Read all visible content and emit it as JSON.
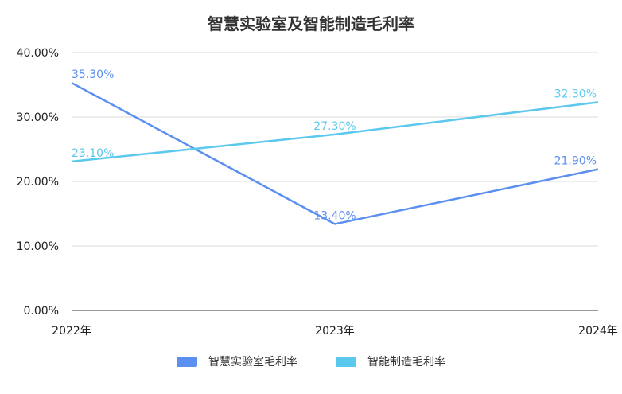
{
  "chart_data": {
    "type": "line",
    "title": "智慧实验室及智能制造毛利率",
    "categories": [
      "2022年",
      "2023年",
      "2024年"
    ],
    "ylim": [
      0,
      40
    ],
    "yticks": [
      "0.00%",
      "10.00%",
      "20.00%",
      "30.00%",
      "40.00%"
    ],
    "grid": true,
    "legend_position": "bottom",
    "series": [
      {
        "name": "智慧实验室毛利率",
        "values": [
          35.3,
          13.4,
          21.9
        ],
        "labels": [
          "35.30%",
          "13.40%",
          "21.90%"
        ],
        "color": "#5b8ff0"
      },
      {
        "name": "智能制造毛利率",
        "values": [
          23.1,
          27.3,
          32.3
        ],
        "labels": [
          "23.10%",
          "27.30%",
          "32.30%"
        ],
        "color": "#5bc8ee"
      }
    ]
  }
}
